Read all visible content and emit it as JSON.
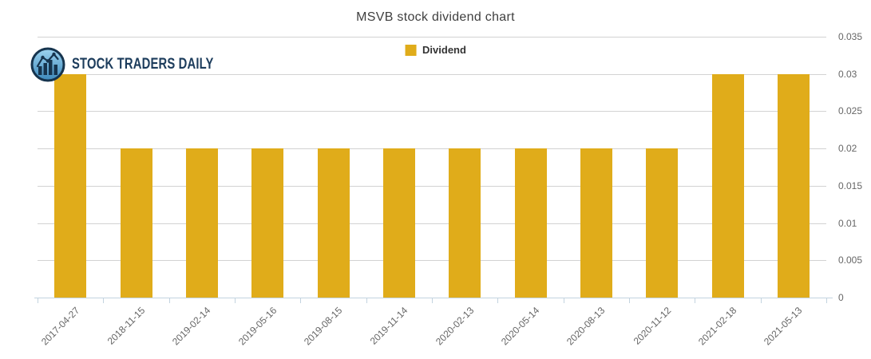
{
  "branding": {
    "text": "STOCK TRADERS DAILY",
    "logo_icon": "stock-chart-in-circle"
  },
  "colors": {
    "bar": "#E0AC1A",
    "gridline": "#D2D2D2",
    "axis_line": "#C3D3DF",
    "tick_text": "#666666",
    "title_text": "#3F3F3F",
    "legend_text": "#333333",
    "brand_navy": "#1C3C5C",
    "logo_fill_top": "#9ED4F0",
    "logo_fill_bottom": "#3C89BC"
  },
  "chart_data": {
    "type": "bar",
    "title": "MSVB stock dividend chart",
    "xlabel": "",
    "ylabel": "",
    "grid": true,
    "legend_position": "top-center",
    "y_axis_side": "right",
    "ylim": [
      0,
      0.035
    ],
    "yticks": [
      0,
      0.005,
      0.01,
      0.015,
      0.02,
      0.025,
      0.03,
      0.035
    ],
    "ytick_labels": [
      "0",
      "0.005",
      "0.01",
      "0.015",
      "0.02",
      "0.025",
      "0.03",
      "0.035"
    ],
    "categories": [
      "2017-04-27",
      "2018-11-15",
      "2019-02-14",
      "2019-05-16",
      "2019-08-15",
      "2019-11-14",
      "2020-02-13",
      "2020-05-14",
      "2020-08-13",
      "2020-11-12",
      "2021-02-18",
      "2021-05-13"
    ],
    "series": [
      {
        "name": "Dividend",
        "color": "#E0AC1A",
        "values": [
          0.03,
          0.02,
          0.02,
          0.02,
          0.02,
          0.02,
          0.02,
          0.02,
          0.02,
          0.02,
          0.03,
          0.03
        ]
      }
    ]
  }
}
